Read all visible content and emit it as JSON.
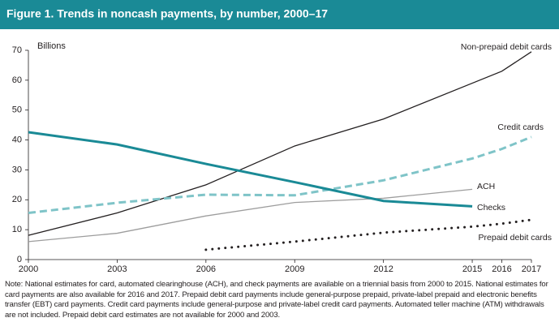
{
  "chart_data": {
    "type": "line",
    "title": "Figure 1. Trends in noncash payments, by number, 2000–17",
    "y_label": "Billions",
    "x": [
      2000,
      2003,
      2006,
      2009,
      2012,
      2015,
      2016,
      2017
    ],
    "xlim": [
      2000,
      2017
    ],
    "xticks": [
      2000,
      2003,
      2006,
      2009,
      2012,
      2015,
      2016,
      2017
    ],
    "ylim": [
      0,
      70
    ],
    "yticks": [
      0,
      10,
      20,
      30,
      40,
      50,
      60,
      70
    ],
    "series": [
      {
        "name": "Non-prepaid debit cards",
        "color": "#231f20",
        "style": "solid",
        "values": [
          8.1,
          15.6,
          25,
          38,
          47,
          59,
          63,
          69.5
        ]
      },
      {
        "name": "Credit cards",
        "color": "#7fc4c8",
        "style": "dashed",
        "values": [
          15.6,
          19,
          21.7,
          21.5,
          26.5,
          33.8,
          37,
          41
        ]
      },
      {
        "name": "ACH",
        "color": "#9d9d9d",
        "style": "solid",
        "values": [
          6,
          8.8,
          14.6,
          19.1,
          20.5,
          23.5,
          null,
          null
        ]
      },
      {
        "name": "Checks",
        "color": "#1a8a96",
        "style": "thick",
        "values": [
          42.6,
          38.5,
          32,
          25.9,
          19.6,
          17.8,
          null,
          null
        ]
      },
      {
        "name": "Prepaid debit cards",
        "color": "#231f20",
        "style": "dotted",
        "values": [
          null,
          null,
          3.3,
          6,
          9,
          11,
          12,
          13.3
        ]
      }
    ],
    "note": "Note: National estimates for card, automated clearinghouse (ACH), and check payments are available on a triennial basis from 2000 to 2015. National estimates for card payments are also available for 2016 and 2017. Prepaid debit card payments include general-purpose prepaid, private-label prepaid and electronic benefits transfer (EBT) card payments. Credit card payments include general-purpose and private-label credit card payments. Automated teller machine (ATM) withdrawals are not included. Prepaid debit card estimates are not available for 2000 and 2003."
  }
}
